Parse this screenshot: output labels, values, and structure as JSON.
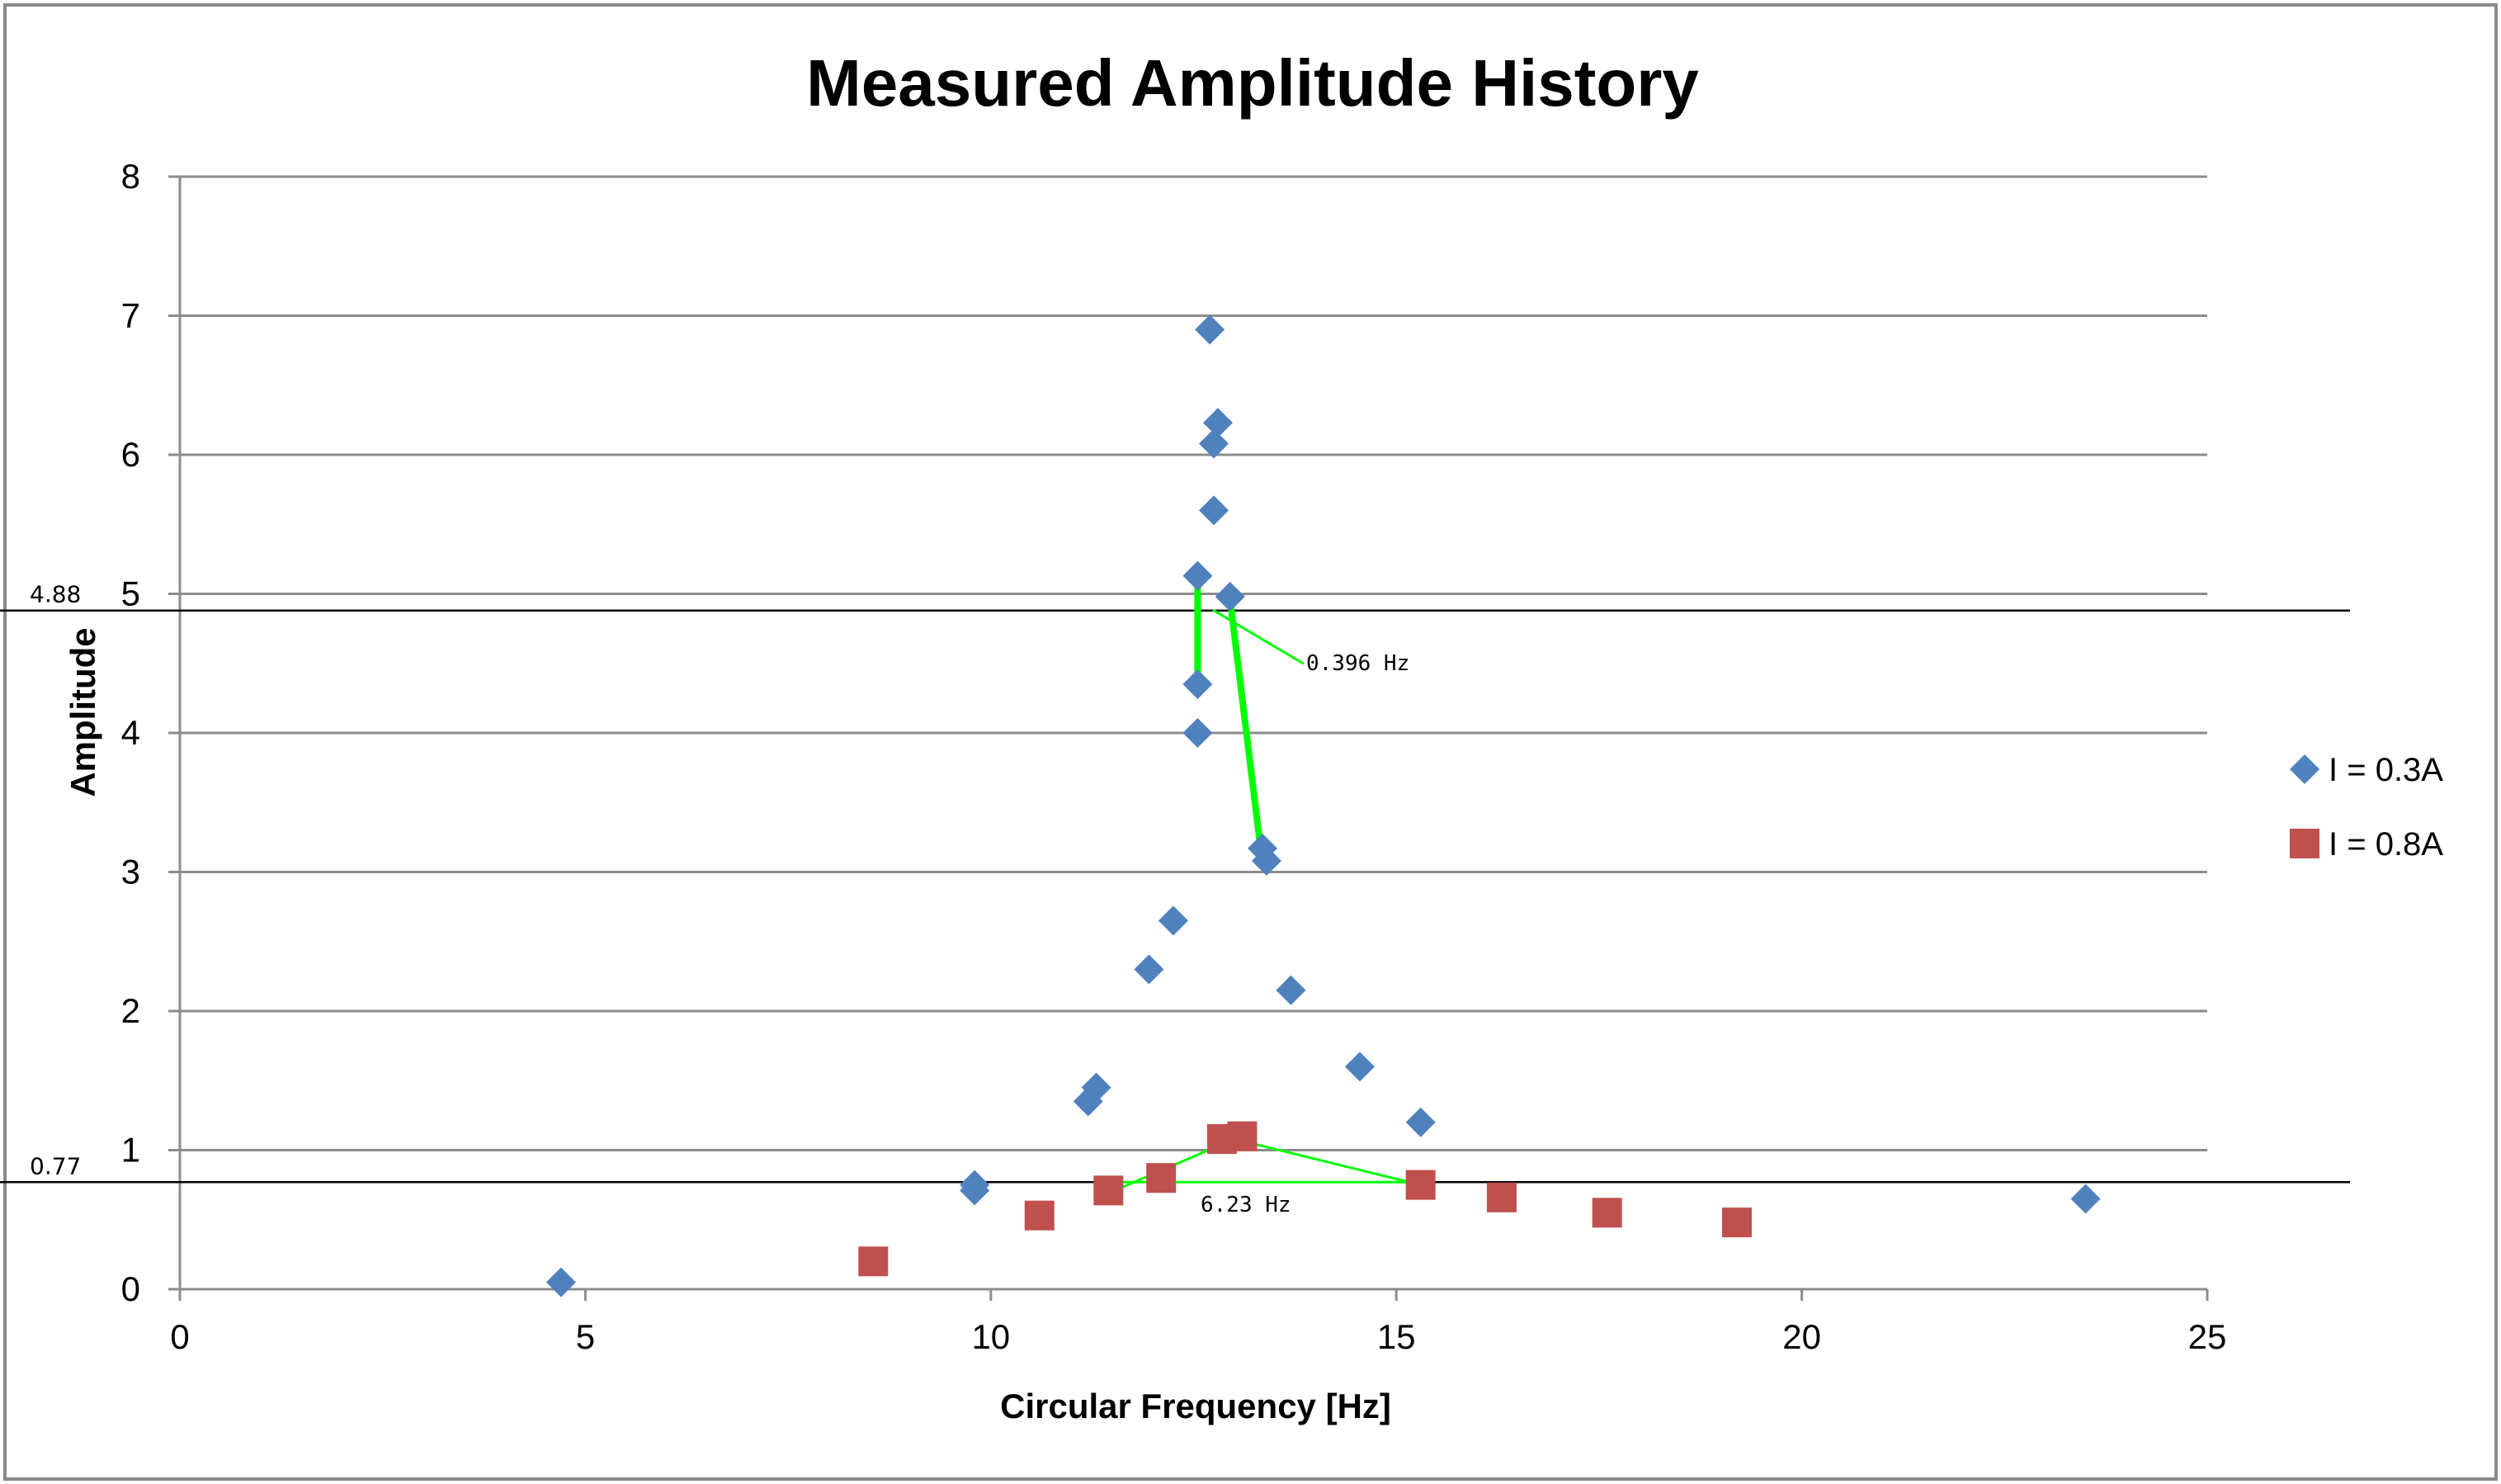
{
  "chart_data": {
    "type": "scatter",
    "title": "Measured Amplitude History",
    "xlabel": "Circular Frequency [Hz]",
    "ylabel": "Amplitude",
    "xlim": [
      0,
      25
    ],
    "ylim": [
      0,
      8
    ],
    "x_ticks": [
      "0",
      "5",
      "10",
      "15",
      "20",
      "25"
    ],
    "y_ticks": [
      "0",
      "1",
      "2",
      "3",
      "4",
      "5",
      "6",
      "7",
      "8"
    ],
    "grid": "horizontal",
    "legend_position": "right",
    "series": [
      {
        "name": "I = 0.3A",
        "marker": "diamond",
        "color": "#4f81bd",
        "points": [
          {
            "x": 4.7,
            "y": 0.05
          },
          {
            "x": 9.8,
            "y": 0.75
          },
          {
            "x": 9.8,
            "y": 0.71
          },
          {
            "x": 11.2,
            "y": 1.35
          },
          {
            "x": 11.3,
            "y": 1.45
          },
          {
            "x": 11.95,
            "y": 2.3
          },
          {
            "x": 12.25,
            "y": 2.65
          },
          {
            "x": 12.55,
            "y": 4.0
          },
          {
            "x": 12.55,
            "y": 4.35
          },
          {
            "x": 12.55,
            "y": 5.13
          },
          {
            "x": 12.7,
            "y": 6.9
          },
          {
            "x": 12.75,
            "y": 6.08
          },
          {
            "x": 12.8,
            "y": 6.23
          },
          {
            "x": 12.75,
            "y": 5.6
          },
          {
            "x": 12.95,
            "y": 4.98
          },
          {
            "x": 13.35,
            "y": 3.17
          },
          {
            "x": 13.4,
            "y": 3.08
          },
          {
            "x": 13.7,
            "y": 2.15
          },
          {
            "x": 14.55,
            "y": 1.6
          },
          {
            "x": 15.3,
            "y": 1.2
          },
          {
            "x": 23.5,
            "y": 0.65
          }
        ]
      },
      {
        "name": "I = 0.8A",
        "marker": "square",
        "color": "#c0504d",
        "points": [
          {
            "x": 8.55,
            "y": 0.2
          },
          {
            "x": 10.6,
            "y": 0.53
          },
          {
            "x": 11.45,
            "y": 0.71
          },
          {
            "x": 12.1,
            "y": 0.8
          },
          {
            "x": 12.85,
            "y": 1.08
          },
          {
            "x": 13.1,
            "y": 1.1
          },
          {
            "x": 15.3,
            "y": 0.75
          },
          {
            "x": 16.3,
            "y": 0.66
          },
          {
            "x": 17.6,
            "y": 0.55
          },
          {
            "x": 19.2,
            "y": 0.48
          }
        ]
      }
    ],
    "reference_lines": [
      {
        "label": "4.88",
        "y": 4.88
      },
      {
        "label": "0.77",
        "y": 0.77
      }
    ],
    "annotations": [
      {
        "text": "0.396 Hz",
        "color": "#00ff00",
        "segments": [
          {
            "x1": 12.55,
            "y1": 5.1,
            "x2": 12.55,
            "y2": 4.35,
            "thick": true
          },
          {
            "x1": 12.95,
            "y1": 4.96,
            "x2": 13.32,
            "y2": 3.2,
            "thick": true
          },
          {
            "x1": 12.75,
            "y1": 4.88,
            "x2": 13.85,
            "y2": 4.5,
            "thick": false
          }
        ]
      },
      {
        "text": "6.23 Hz",
        "color": "#00ff00",
        "segments": [
          {
            "x1": 11.45,
            "y1": 0.69,
            "x2": 13.0,
            "y2": 1.08,
            "thick": false
          },
          {
            "x1": 13.0,
            "y1": 1.08,
            "x2": 15.3,
            "y2": 0.75,
            "thick": false
          },
          {
            "x1": 11.45,
            "y1": 0.77,
            "x2": 15.3,
            "y2": 0.77,
            "thick": false
          }
        ]
      }
    ]
  }
}
